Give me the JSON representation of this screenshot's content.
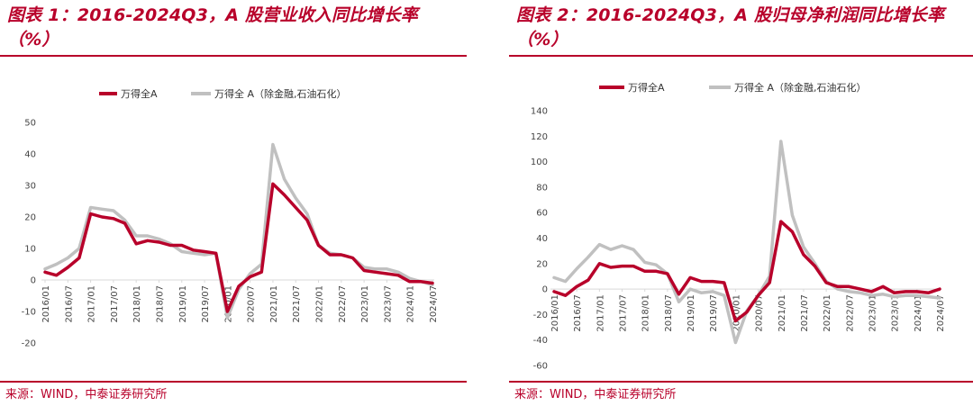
{
  "source_text": "来源：WIND，中泰证券研究所",
  "colors": {
    "series_main": "#b8002a",
    "series_ex": "#c0c0c0",
    "title": "#b8002a",
    "axis": "#d9d9d9"
  },
  "chart_data": [
    {
      "type": "line",
      "title": "图表 1：2016-2024Q3，A 股营业收入同比增长率（%）",
      "ylim": [
        -20,
        50
      ],
      "y_ticks": [
        -20,
        -10,
        0,
        10,
        20,
        30,
        40,
        50
      ],
      "x": [
        "2016Q1",
        "2016Q2",
        "2016Q3",
        "2016Q4",
        "2017Q1",
        "2017Q2",
        "2017Q3",
        "2017Q4",
        "2018Q1",
        "2018Q2",
        "2018Q3",
        "2018Q4",
        "2019Q1",
        "2019Q2",
        "2019Q3",
        "2019Q4",
        "2020Q1",
        "2020Q2",
        "2020Q3",
        "2020Q4",
        "2021Q1",
        "2021Q2",
        "2021Q3",
        "2021Q4",
        "2022Q1",
        "2022Q2",
        "2022Q3",
        "2022Q4",
        "2023Q1",
        "2023Q2",
        "2023Q3",
        "2023Q4",
        "2024Q1",
        "2024Q2",
        "2024Q3"
      ],
      "x_ticks": [
        "2016/01",
        "2016/07",
        "2017/01",
        "2017/07",
        "2018/01",
        "2018/07",
        "2019/01",
        "2019/07",
        "2020/01",
        "2020/07",
        "2021/01",
        "2021/07",
        "2022/01",
        "2022/07",
        "2023/01",
        "2023/07",
        "2024/01",
        "2024/07"
      ],
      "series": [
        {
          "name": "万得全A",
          "values": [
            2.5,
            1.5,
            4,
            7,
            21,
            20,
            19.5,
            18,
            11.5,
            12.5,
            12,
            11,
            11,
            9.5,
            9,
            8.5,
            -10,
            -2,
            1,
            2.5,
            30.5,
            27,
            23,
            19,
            11,
            8,
            8,
            7,
            3,
            2.5,
            2,
            1.5,
            -0.5,
            -0.5,
            -1
          ]
        },
        {
          "name": "万得全 A（除金融,石油石化）",
          "values": [
            3.5,
            5,
            7,
            10,
            23,
            22.5,
            22,
            19,
            14,
            14,
            13,
            11.5,
            9,
            8.5,
            8,
            8.5,
            -12,
            -3,
            2,
            5,
            43,
            32,
            26,
            21,
            11,
            8.5,
            8,
            7,
            4,
            3.5,
            3.5,
            2.5,
            0.5,
            -0.5,
            -1.5
          ]
        }
      ]
    },
    {
      "type": "line",
      "title": "图表 2：2016-2024Q3，A 股归母净利润同比增长率（%）",
      "ylim": [
        -60,
        140
      ],
      "y_ticks": [
        -60,
        -40,
        -20,
        0,
        20,
        40,
        60,
        80,
        100,
        120,
        140
      ],
      "x": [
        "2016Q1",
        "2016Q2",
        "2016Q3",
        "2016Q4",
        "2017Q1",
        "2017Q2",
        "2017Q3",
        "2017Q4",
        "2018Q1",
        "2018Q2",
        "2018Q3",
        "2018Q4",
        "2019Q1",
        "2019Q2",
        "2019Q3",
        "2019Q4",
        "2020Q1",
        "2020Q2",
        "2020Q3",
        "2020Q4",
        "2021Q1",
        "2021Q2",
        "2021Q3",
        "2021Q4",
        "2022Q1",
        "2022Q2",
        "2022Q3",
        "2022Q4",
        "2023Q1",
        "2023Q2",
        "2023Q3",
        "2023Q4",
        "2024Q1",
        "2024Q2",
        "2024Q3"
      ],
      "x_ticks": [
        "2016/01",
        "2016/07",
        "2017/01",
        "2017/07",
        "2018/01",
        "2018/07",
        "2019/01",
        "2019/07",
        "2020/01",
        "2020/07",
        "2021/01",
        "2021/07",
        "2022/01",
        "2022/07",
        "2023/01",
        "2023/07",
        "2024/01",
        "2024/07"
      ],
      "series": [
        {
          "name": "万得全A",
          "values": [
            -2,
            -5,
            2,
            7,
            20,
            17,
            18,
            18,
            14,
            14,
            12,
            -4,
            9,
            6,
            6,
            5,
            -25,
            -18,
            -5,
            5,
            53,
            45,
            27,
            18,
            5,
            2,
            2,
            0,
            -2,
            2,
            -3,
            -2,
            -2,
            -3,
            0
          ]
        },
        {
          "name": "万得全 A（除金融,石油石化）",
          "values": [
            9,
            6,
            16,
            25,
            35,
            31,
            34,
            31,
            21,
            19,
            12,
            -10,
            0,
            -3,
            -2,
            -5,
            -42,
            -17,
            -5,
            10,
            116,
            58,
            33,
            20,
            6,
            0,
            -2,
            -3,
            -5,
            -4,
            -6,
            -5,
            -5,
            -6,
            -7
          ]
        }
      ]
    }
  ]
}
